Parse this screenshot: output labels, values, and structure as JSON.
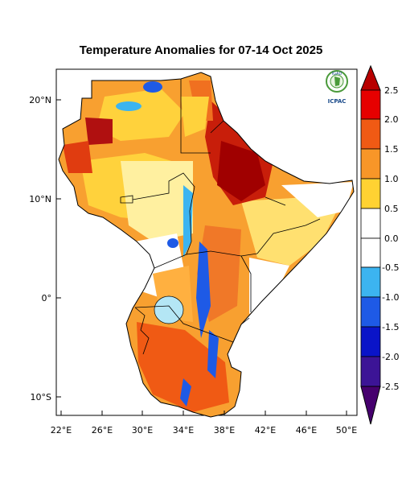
{
  "title": "Temperature Anomalies for 07-14 Oct 2025",
  "logo": {
    "text_top": "IGAD",
    "text_bottom": "ICPAC"
  },
  "map": {
    "lon_ticks": [
      "22°E",
      "26°E",
      "30°E",
      "34°E",
      "38°E",
      "42°E",
      "46°E",
      "50°E"
    ],
    "lat_ticks": [
      "20°N",
      "10°N",
      "0°",
      "10°S"
    ]
  },
  "colorbar": {
    "labels": [
      "2.5",
      "2.0",
      "1.5",
      "1.0",
      "0.5",
      "0.0",
      "-0.5",
      "-1.0",
      "-1.5",
      "-2.0",
      "-2.5"
    ],
    "colors_top_to_bottom": [
      "#b80000",
      "#e60000",
      "#f05a14",
      "#f89628",
      "#ffd232",
      "#ffffff",
      "#ffffff",
      "#3cb4f0",
      "#1e5ae6",
      "#0a14c8",
      "#3c1496",
      "#46006e"
    ]
  }
}
